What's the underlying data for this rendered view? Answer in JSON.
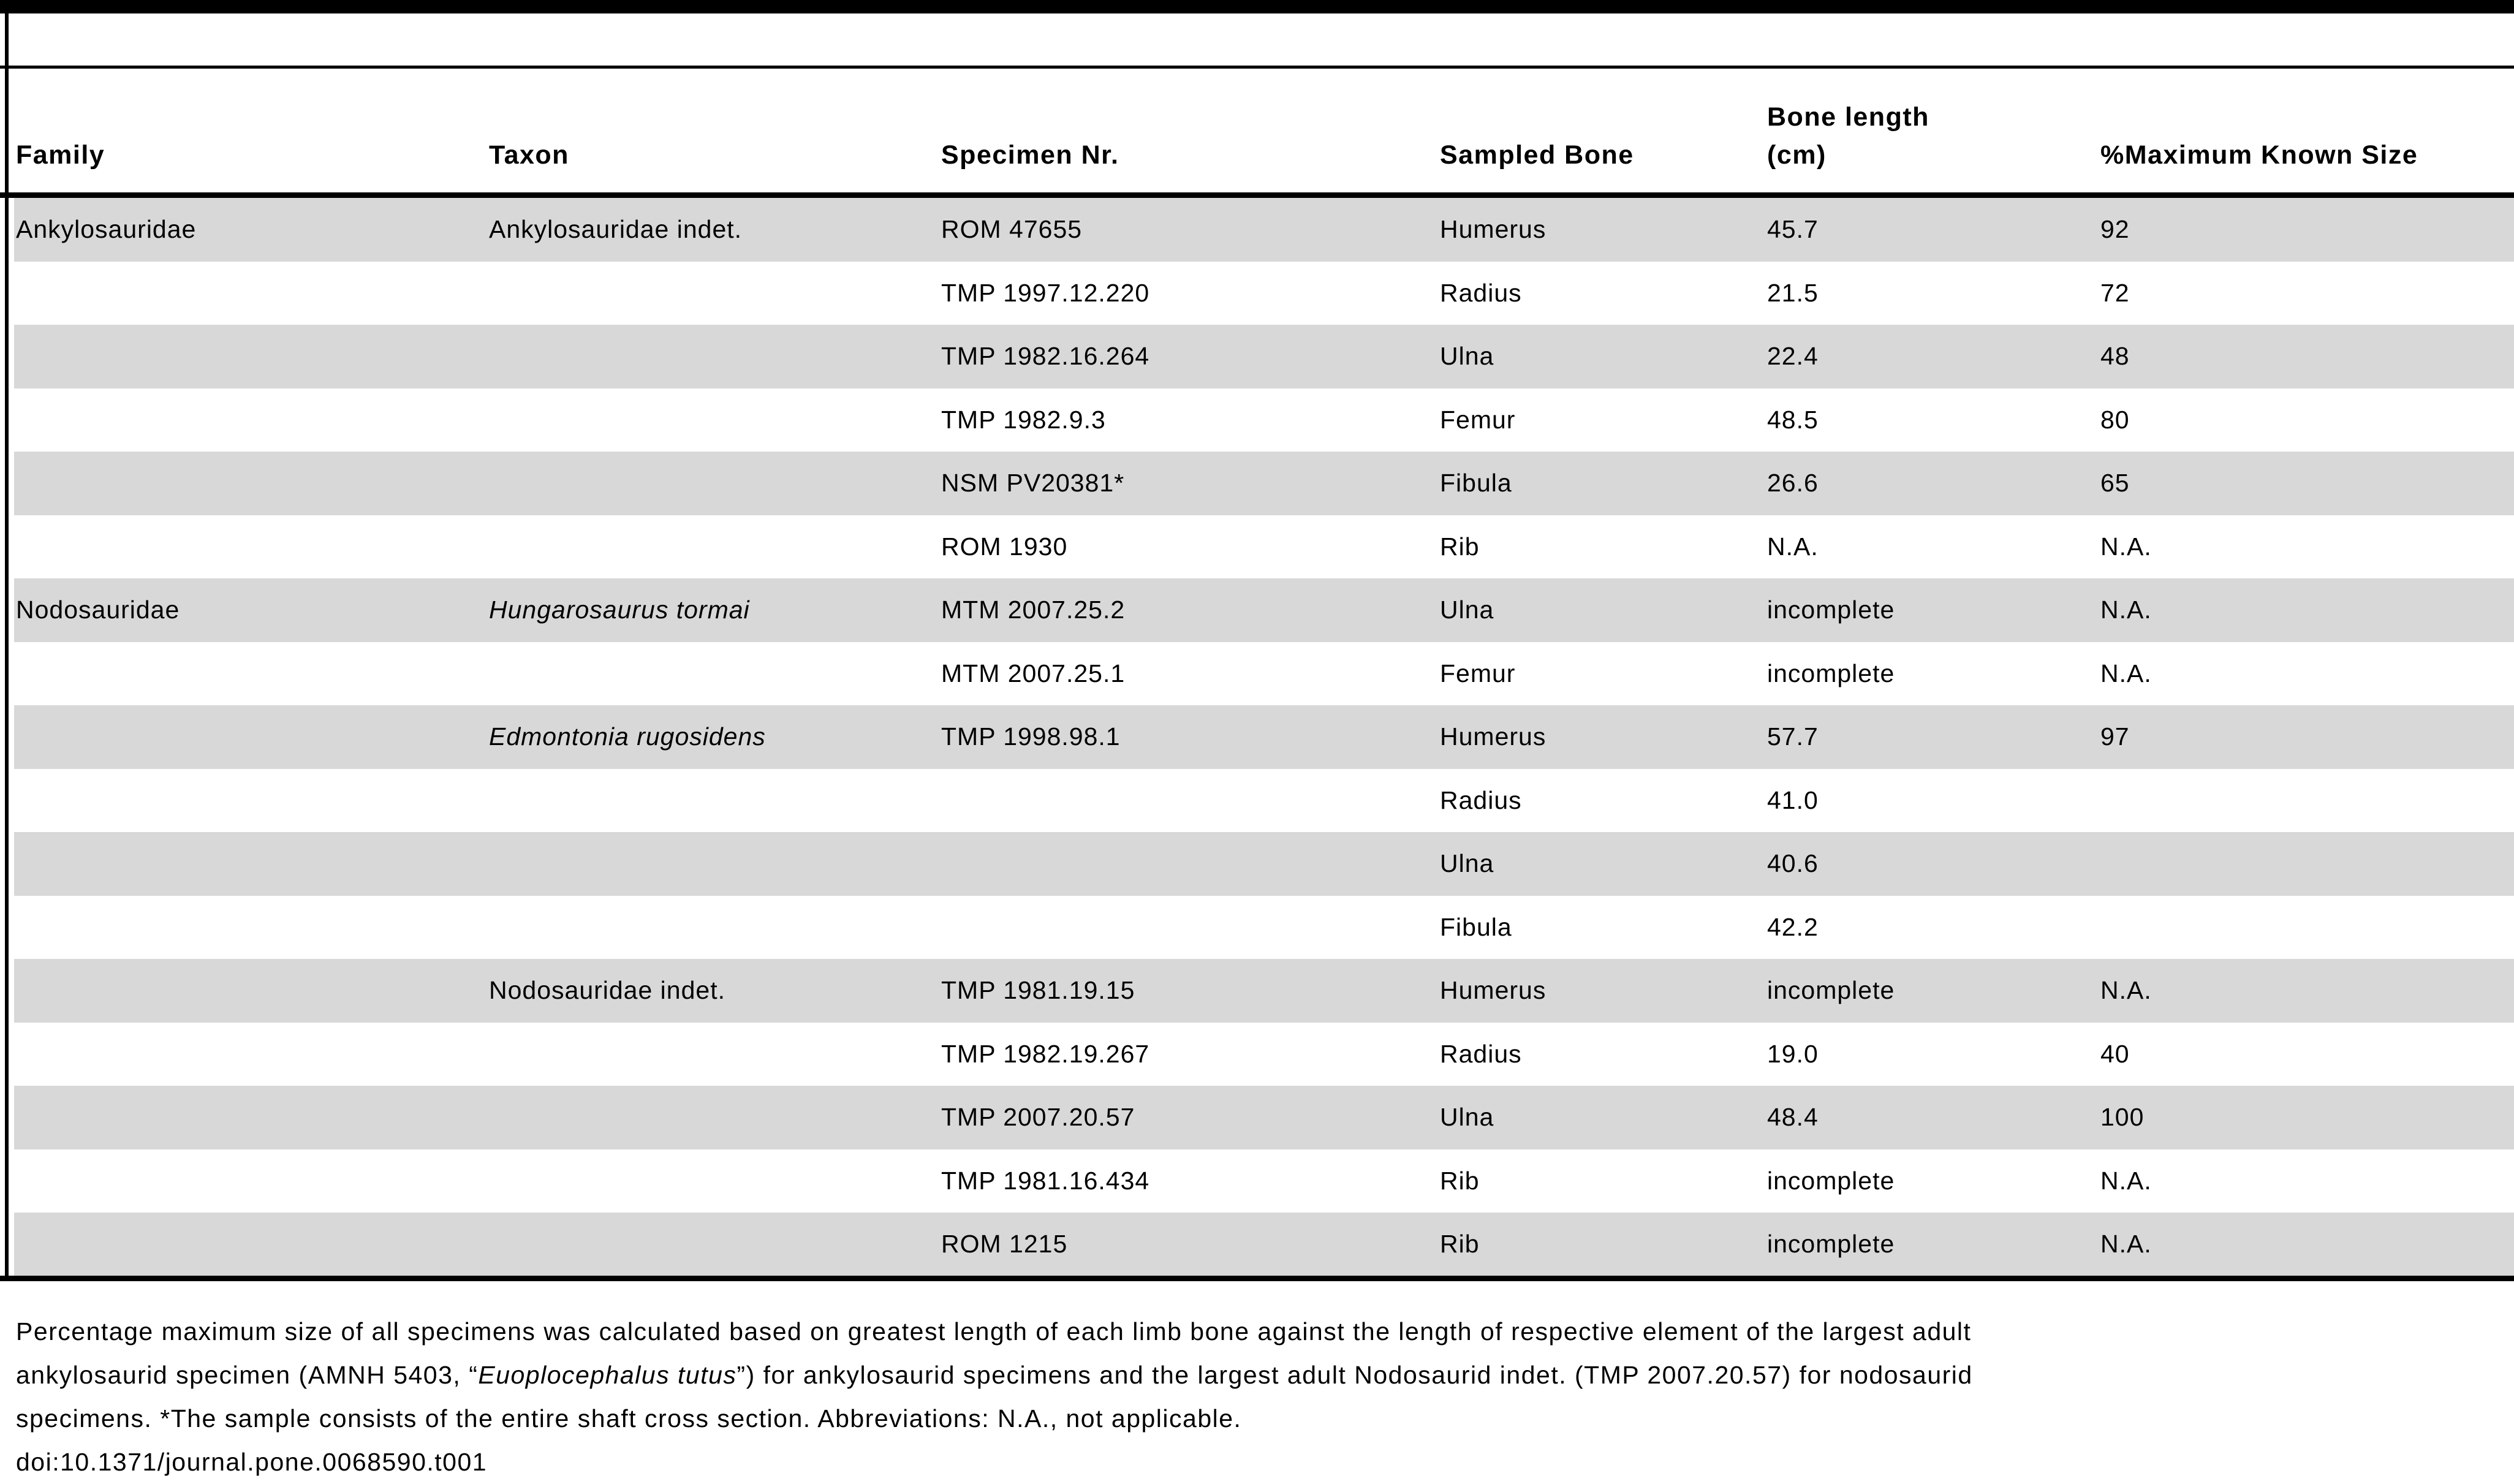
{
  "table": {
    "header": {
      "family": "Family",
      "taxon": "Taxon",
      "specimen": "Specimen Nr.",
      "bone": "Sampled Bone",
      "length_line1": "Bone length",
      "length_line2": "(cm)",
      "pct": "%Maximum Known Size"
    },
    "rows": [
      {
        "family": "Ankylosauridae",
        "taxon": "Ankylosauridae indet.",
        "taxon_italic": false,
        "specimen": "ROM 47655",
        "bone": "Humerus",
        "length": "45.7",
        "pct": "92"
      },
      {
        "family": "",
        "taxon": "",
        "taxon_italic": false,
        "specimen": "TMP 1997.12.220",
        "bone": "Radius",
        "length": "21.5",
        "pct": "72"
      },
      {
        "family": "",
        "taxon": "",
        "taxon_italic": false,
        "specimen": "TMP 1982.16.264",
        "bone": "Ulna",
        "length": "22.4",
        "pct": "48"
      },
      {
        "family": "",
        "taxon": "",
        "taxon_italic": false,
        "specimen": "TMP 1982.9.3",
        "bone": "Femur",
        "length": "48.5",
        "pct": "80"
      },
      {
        "family": "",
        "taxon": "",
        "taxon_italic": false,
        "specimen": "NSM PV20381*",
        "bone": "Fibula",
        "length": "26.6",
        "pct": "65"
      },
      {
        "family": "",
        "taxon": "",
        "taxon_italic": false,
        "specimen": "ROM 1930",
        "bone": "Rib",
        "length": "N.A.",
        "pct": "N.A."
      },
      {
        "family": "Nodosauridae",
        "taxon": "Hungarosaurus tormai",
        "taxon_italic": true,
        "specimen": "MTM 2007.25.2",
        "bone": "Ulna",
        "length": "incomplete",
        "pct": "N.A."
      },
      {
        "family": "",
        "taxon": "",
        "taxon_italic": false,
        "specimen": "MTM 2007.25.1",
        "bone": "Femur",
        "length": "incomplete",
        "pct": "N.A."
      },
      {
        "family": "",
        "taxon": "Edmontonia rugosidens",
        "taxon_italic": true,
        "specimen": "TMP 1998.98.1",
        "bone": "Humerus",
        "length": "57.7",
        "pct": "97"
      },
      {
        "family": "",
        "taxon": "",
        "taxon_italic": false,
        "specimen": "",
        "bone": "Radius",
        "length": "41.0",
        "pct": ""
      },
      {
        "family": "",
        "taxon": "",
        "taxon_italic": false,
        "specimen": "",
        "bone": "Ulna",
        "length": "40.6",
        "pct": ""
      },
      {
        "family": "",
        "taxon": "",
        "taxon_italic": false,
        "specimen": "",
        "bone": "Fibula",
        "length": "42.2",
        "pct": ""
      },
      {
        "family": "",
        "taxon": "Nodosauridae indet.",
        "taxon_italic": false,
        "specimen": "TMP 1981.19.15",
        "bone": "Humerus",
        "length": "incomplete",
        "pct": "N.A."
      },
      {
        "family": "",
        "taxon": "",
        "taxon_italic": false,
        "specimen": "TMP 1982.19.267",
        "bone": "Radius",
        "length": "19.0",
        "pct": "40"
      },
      {
        "family": "",
        "taxon": "",
        "taxon_italic": false,
        "specimen": "TMP 2007.20.57",
        "bone": "Ulna",
        "length": "48.4",
        "pct": "100"
      },
      {
        "family": "",
        "taxon": "",
        "taxon_italic": false,
        "specimen": "TMP 1981.16.434",
        "bone": "Rib",
        "length": "incomplete",
        "pct": "N.A."
      },
      {
        "family": "",
        "taxon": "",
        "taxon_italic": false,
        "specimen": "ROM 1215",
        "bone": "Rib",
        "length": "incomplete",
        "pct": "N.A."
      }
    ]
  },
  "footnote": {
    "line1": "Percentage maximum size of all specimens was calculated based on greatest length of each limb bone against the length of respective element of the largest adult",
    "line2_pre": "ankylosaurid specimen (AMNH 5403, “",
    "line2_italic": "Euoplocephalus tutus",
    "line2_post": "”) for ankylosaurid specimens and the largest adult Nodosaurid indet. (TMP 2007.20.57) for nodosaurid",
    "line3": "specimens. *The sample consists of the entire shaft cross section. Abbreviations: N.A., not applicable.",
    "doi": "doi:10.1371/journal.pone.0068590.t001"
  },
  "colors": {
    "stripe": "#d8d8d8",
    "rule": "#000000",
    "background": "#ffffff"
  }
}
